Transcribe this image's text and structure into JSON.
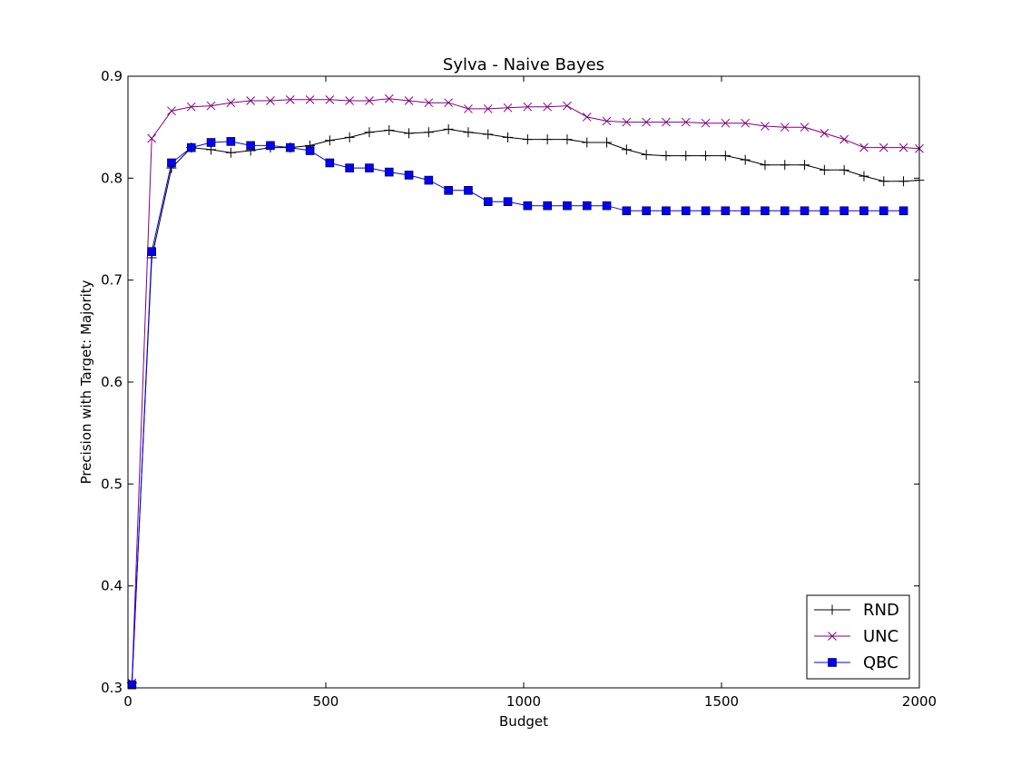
{
  "chart_data": {
    "type": "line",
    "title": "Sylva - Naive Bayes",
    "xlabel": "Budget",
    "ylabel": "Precision with Target: Majority",
    "xlim": [
      0,
      2000
    ],
    "ylim": [
      0.3,
      0.9
    ],
    "xticks": [
      0,
      500,
      1000,
      1500,
      2000
    ],
    "yticks": [
      0.3,
      0.4,
      0.5,
      0.6,
      0.7,
      0.8,
      0.9
    ],
    "xtick_labels": [
      "0",
      "500",
      "1000",
      "1500",
      "2000"
    ],
    "ytick_labels": [
      "0.3",
      "0.4",
      "0.5",
      "0.6",
      "0.7",
      "0.8",
      "0.9"
    ],
    "grid": false,
    "legend_position": "bottom-right",
    "series": [
      {
        "name": "RND",
        "color": "#000000",
        "marker": "plus",
        "x": [
          10,
          60,
          110,
          160,
          210,
          260,
          310,
          360,
          410,
          460,
          510,
          560,
          610,
          660,
          710,
          760,
          810,
          860,
          910,
          960,
          1010,
          1060,
          1110,
          1160,
          1210,
          1260,
          1310,
          1360,
          1410,
          1460,
          1510,
          1560,
          1610,
          1660,
          1710,
          1760,
          1810,
          1860,
          1910,
          1960,
          2000
        ],
        "y": [
          0.305,
          0.722,
          0.81,
          0.83,
          0.828,
          0.825,
          0.827,
          0.83,
          0.83,
          0.832,
          0.837,
          0.84,
          0.845,
          0.847,
          0.844,
          0.845,
          0.848,
          0.845,
          0.843,
          0.84,
          0.838,
          0.838,
          0.838,
          0.835,
          0.835,
          0.828,
          0.823,
          0.822,
          0.822,
          0.822,
          0.822,
          0.818,
          0.813,
          0.813,
          0.813,
          0.808,
          0.808,
          0.802,
          0.797,
          0.797,
          0.798
        ]
      },
      {
        "name": "UNC",
        "color": "#800080",
        "marker": "x",
        "x": [
          10,
          60,
          110,
          160,
          210,
          260,
          310,
          360,
          410,
          460,
          510,
          560,
          610,
          660,
          710,
          760,
          810,
          860,
          910,
          960,
          1010,
          1060,
          1110,
          1160,
          1210,
          1260,
          1310,
          1360,
          1410,
          1460,
          1510,
          1560,
          1610,
          1660,
          1710,
          1760,
          1810,
          1860,
          1910,
          1960,
          2000
        ],
        "y": [
          0.305,
          0.839,
          0.866,
          0.87,
          0.871,
          0.874,
          0.876,
          0.876,
          0.877,
          0.877,
          0.877,
          0.876,
          0.876,
          0.878,
          0.876,
          0.874,
          0.874,
          0.868,
          0.868,
          0.869,
          0.87,
          0.87,
          0.871,
          0.86,
          0.856,
          0.855,
          0.855,
          0.855,
          0.855,
          0.854,
          0.854,
          0.854,
          0.851,
          0.85,
          0.85,
          0.844,
          0.838,
          0.83,
          0.83,
          0.83,
          0.829
        ]
      },
      {
        "name": "QBC",
        "color": "#0000ff",
        "marker": "square",
        "x": [
          10,
          60,
          110,
          160,
          210,
          260,
          310,
          360,
          410,
          460,
          510,
          560,
          610,
          660,
          710,
          760,
          810,
          860,
          910,
          960,
          1010,
          1060,
          1110,
          1160,
          1210,
          1260,
          1310,
          1360,
          1410,
          1460,
          1510,
          1560,
          1610,
          1660,
          1710,
          1760,
          1810,
          1860,
          1910,
          1960
        ],
        "y": [
          0.303,
          0.728,
          0.815,
          0.83,
          0.835,
          0.836,
          0.832,
          0.832,
          0.83,
          0.827,
          0.815,
          0.81,
          0.81,
          0.806,
          0.803,
          0.798,
          0.788,
          0.788,
          0.777,
          0.777,
          0.773,
          0.773,
          0.773,
          0.773,
          0.773,
          0.768,
          0.768,
          0.768,
          0.768,
          0.768,
          0.768,
          0.768,
          0.768,
          0.768,
          0.768,
          0.768,
          0.768,
          0.768,
          0.768,
          0.768
        ]
      }
    ]
  }
}
